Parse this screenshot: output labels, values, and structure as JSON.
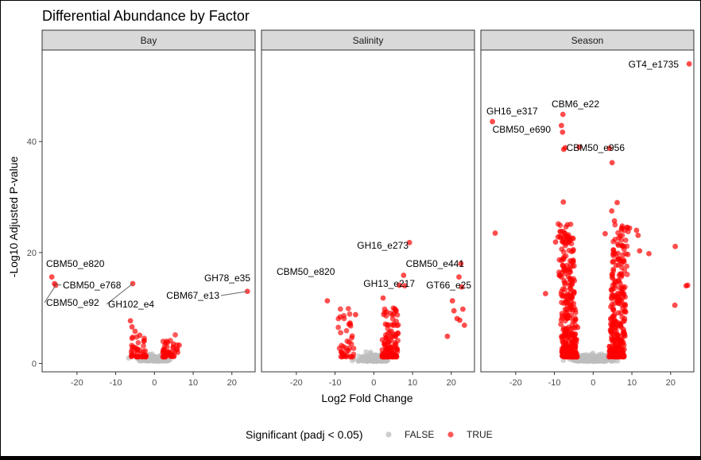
{
  "chart_data": {
    "type": "scatter",
    "title": "Differential Abundance by Factor",
    "xlabel": "Log2 Fold Change",
    "ylabel": "-Log10 Adjusted P-value",
    "xlim": [
      -29,
      26
    ],
    "ylim": [
      -1.5,
      56.5
    ],
    "x_ticks": [
      -20,
      -10,
      0,
      10,
      20
    ],
    "y_ticks": [
      0,
      20,
      40
    ],
    "legend": {
      "title": "Significant (padj < 0.05)",
      "position": "bottom",
      "items": [
        {
          "label": "FALSE",
          "color": "#bebebe"
        },
        {
          "label": "TRUE",
          "color": "#ff0000"
        }
      ]
    },
    "facets": [
      {
        "name": "Bay",
        "points": [
          {
            "x": -26.5,
            "y": 15.6,
            "sig": true
          },
          {
            "x": -25.8,
            "y": 14.4,
            "sig": true
          },
          {
            "x": -25.5,
            "y": 14.1,
            "sig": true
          },
          {
            "x": -5.6,
            "y": 14.4,
            "sig": true
          },
          {
            "x": 24.0,
            "y": 13.0,
            "sig": true
          },
          {
            "x": -6.2,
            "y": 7.7,
            "sig": true
          },
          {
            "x": -5.8,
            "y": 6.6,
            "sig": true
          },
          {
            "x": -5.0,
            "y": 5.8,
            "sig": true
          },
          {
            "x": -3.8,
            "y": 5.1,
            "sig": true
          },
          {
            "x": -2.7,
            "y": 4.0,
            "sig": true
          },
          {
            "x": 3.4,
            "y": 3.8,
            "sig": true
          },
          {
            "x": 4.9,
            "y": 3.5,
            "sig": true
          },
          {
            "x": 6.4,
            "y": 3.3,
            "sig": true
          },
          {
            "x": 5.9,
            "y": 2.6,
            "sig": true
          },
          {
            "x": 2.6,
            "y": 2.5,
            "sig": true
          }
        ],
        "annotations": [
          {
            "label": "CBM50_e820",
            "x": -26.5,
            "y": 15.6
          },
          {
            "label": "CBM50_e768",
            "x": -25.8,
            "y": 14.4
          },
          {
            "label": "CBM50_e92",
            "x": -25.5,
            "y": 14.1
          },
          {
            "label": "GH102_e4",
            "x": -5.6,
            "y": 14.4
          },
          {
            "label": "GH78_e35",
            "x": 24.0,
            "y": 13.0
          },
          {
            "label": "CBM67_e13",
            "x": 24.0,
            "y": 13.0
          }
        ]
      },
      {
        "name": "Salinity",
        "points": [
          {
            "x": -29.6,
            "y": 16.2,
            "sig": true
          },
          {
            "x": -12.0,
            "y": 11.3,
            "sig": true
          },
          {
            "x": -4.7,
            "y": 8.8,
            "sig": true
          },
          {
            "x": -6.1,
            "y": 7.1,
            "sig": true
          },
          {
            "x": 9.2,
            "y": 21.8,
            "sig": true
          },
          {
            "x": 22.5,
            "y": 18.0,
            "sig": true
          },
          {
            "x": 7.7,
            "y": 15.9,
            "sig": true
          },
          {
            "x": 22.0,
            "y": 15.6,
            "sig": true
          },
          {
            "x": 6.6,
            "y": 14.1,
            "sig": true
          },
          {
            "x": 8.0,
            "y": 14.0,
            "sig": true
          },
          {
            "x": 22.7,
            "y": 13.8,
            "sig": true
          },
          {
            "x": 20.3,
            "y": 11.3,
            "sig": true
          },
          {
            "x": 23.0,
            "y": 9.8,
            "sig": true
          },
          {
            "x": 20.7,
            "y": 9.5,
            "sig": true
          },
          {
            "x": 21.5,
            "y": 8.1,
            "sig": true
          },
          {
            "x": 22.2,
            "y": 7.8,
            "sig": true
          },
          {
            "x": 23.4,
            "y": 6.9,
            "sig": true
          },
          {
            "x": 19.0,
            "y": 4.9,
            "sig": true
          },
          {
            "x": 2.4,
            "y": 11.8,
            "sig": true
          },
          {
            "x": 3.3,
            "y": 9.3,
            "sig": true
          }
        ],
        "annotations": [
          {
            "label": "CBM50_e820",
            "x": -29.6,
            "y": 16.2
          },
          {
            "label": "GH16_e273",
            "x": 9.2,
            "y": 21.8
          },
          {
            "label": "CBM50_e441",
            "x": 22.5,
            "y": 18.0
          },
          {
            "label": "GH13_e217",
            "x": 8.0,
            "y": 14.0
          },
          {
            "label": "GT66_e25",
            "x": 22.7,
            "y": 13.8
          }
        ]
      },
      {
        "name": "Season",
        "points": [
          {
            "x": 24.8,
            "y": 54.0,
            "sig": true
          },
          {
            "x": -26.0,
            "y": 43.6,
            "sig": true
          },
          {
            "x": -7.8,
            "y": 44.9,
            "sig": true
          },
          {
            "x": -8.2,
            "y": 42.9,
            "sig": true
          },
          {
            "x": -7.9,
            "y": 41.7,
            "sig": true
          },
          {
            "x": -3.6,
            "y": 39.0,
            "sig": true
          },
          {
            "x": -7.6,
            "y": 38.6,
            "sig": true
          },
          {
            "x": -7.2,
            "y": 38.9,
            "sig": true
          },
          {
            "x": 4.2,
            "y": 38.8,
            "sig": true
          },
          {
            "x": 4.9,
            "y": 36.2,
            "sig": true
          },
          {
            "x": -25.3,
            "y": 23.5,
            "sig": true
          },
          {
            "x": -7.7,
            "y": 29.1,
            "sig": true
          },
          {
            "x": 21.2,
            "y": 21.1,
            "sig": true
          },
          {
            "x": 24.0,
            "y": 14.0,
            "sig": true
          },
          {
            "x": 24.4,
            "y": 14.1,
            "sig": true
          },
          {
            "x": 21.1,
            "y": 10.5,
            "sig": true
          },
          {
            "x": 14.4,
            "y": 19.8,
            "sig": true
          },
          {
            "x": -12.3,
            "y": 12.6,
            "sig": true
          },
          {
            "x": 11.2,
            "y": 24.0,
            "sig": true
          },
          {
            "x": 11.6,
            "y": 23.1,
            "sig": true
          },
          {
            "x": 5.5,
            "y": 25.7,
            "sig": true
          },
          {
            "x": 6.2,
            "y": 29.0,
            "sig": true
          },
          {
            "x": 4.8,
            "y": 27.5,
            "sig": true
          },
          {
            "x": -9.7,
            "y": 21.9,
            "sig": true
          },
          {
            "x": -7.8,
            "y": 23.8,
            "sig": true
          },
          {
            "x": -8.6,
            "y": 22.9,
            "sig": true
          },
          {
            "x": 3.1,
            "y": 23.4,
            "sig": true
          },
          {
            "x": 9.4,
            "y": 24.4,
            "sig": true
          },
          {
            "x": 12.0,
            "y": 20.3,
            "sig": true
          },
          {
            "x": -4.0,
            "y": 6.5,
            "sig": true
          }
        ],
        "annotations": [
          {
            "label": "GT4_e1735",
            "x": 24.8,
            "y": 54.0
          },
          {
            "label": "GH16_e317",
            "x": -26.0,
            "y": 43.6
          },
          {
            "label": "CBM6_e22",
            "x": -7.8,
            "y": 44.9
          },
          {
            "label": "CBM50_e690",
            "x": -8.2,
            "y": 42.9
          },
          {
            "label": "CBM50_e956",
            "x": -3.6,
            "y": 39.0
          }
        ]
      }
    ]
  }
}
